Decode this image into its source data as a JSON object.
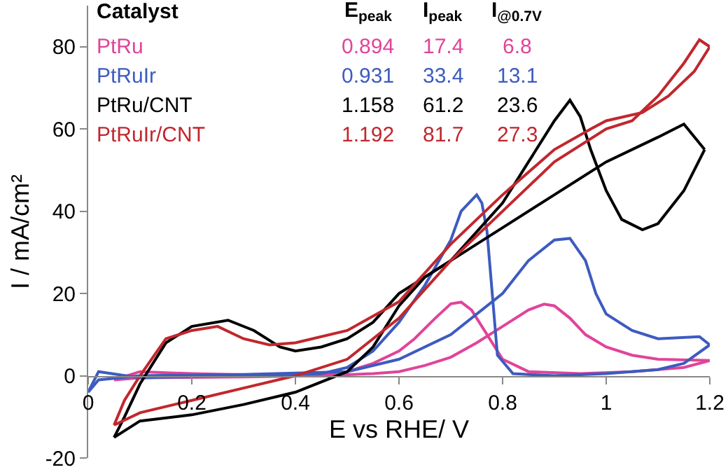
{
  "chart_data": {
    "type": "line",
    "xlabel": "E vs RHE/ V",
    "ylabel": "I / mA/cm²",
    "xlim": [
      0,
      1.2
    ],
    "xticks": [
      0,
      0.2,
      0.4,
      0.6,
      0.8,
      1,
      1.2
    ],
    "ylim": [
      -20,
      90
    ],
    "yticks": [
      -20,
      0,
      20,
      40,
      60,
      80
    ],
    "grid": false,
    "annotations": [
      "Catalyst",
      "E$_{peak}$",
      "I$_{peak}$",
      "I$_{@0.7V}$",
      "0.894",
      "17.4",
      "6.8",
      "0.931",
      "33.4",
      "13.1",
      "1.158",
      "61.2",
      "23.6",
      "1.192",
      "81.7",
      "27.3"
    ],
    "series": [
      {
        "name": "PtRu",
        "color": "#e0449a",
        "x": [
          0.05,
          0.1,
          0.3,
          0.45,
          0.55,
          0.6,
          0.65,
          0.7,
          0.75,
          0.8,
          0.85,
          0.88,
          0.9,
          0.93,
          0.96,
          1.0,
          1.05,
          1.1,
          1.2
        ],
        "values": [
          -1,
          -0.5,
          -0.3,
          0,
          0.5,
          1,
          2.5,
          4.5,
          8,
          12,
          16,
          17.4,
          17,
          14,
          10,
          7,
          5,
          4,
          3.7
        ]
      },
      {
        "color": "#e0449a",
        "x": [
          1.2,
          1.15,
          1.05,
          0.95,
          0.85,
          0.8,
          0.76,
          0.74,
          0.72,
          0.7,
          0.67,
          0.63,
          0.6,
          0.55,
          0.5,
          0.4,
          0.2,
          0.1,
          0.05
        ],
        "values": [
          3.7,
          2,
          1,
          0.5,
          1,
          4,
          12,
          16,
          17.9,
          17.5,
          14,
          9,
          6,
          3,
          1,
          0,
          0.5,
          1,
          -1
        ]
      },
      {
        "name": "PtRuIr",
        "color": "#3d5bbf",
        "x": [
          0.0,
          0.02,
          0.1,
          0.3,
          0.5,
          0.6,
          0.7,
          0.8,
          0.85,
          0.9,
          0.93,
          0.96,
          0.98,
          1.0,
          1.05,
          1.1,
          1.18,
          1.2
        ],
        "values": [
          -4,
          -1,
          0,
          0.3,
          1,
          4,
          10,
          20,
          28,
          33,
          33.4,
          28,
          20,
          15,
          11,
          9,
          9.5,
          7.5
        ]
      },
      {
        "color": "#3d5bbf",
        "x": [
          1.2,
          1.15,
          1.1,
          1.0,
          0.9,
          0.82,
          0.79,
          0.78,
          0.77,
          0.76,
          0.75,
          0.72,
          0.7,
          0.65,
          0.6,
          0.55,
          0.5,
          0.45,
          0.3,
          0.1,
          0.02,
          0.0
        ],
        "values": [
          7.5,
          3,
          1.5,
          0.5,
          0,
          0.5,
          5,
          20,
          35,
          42,
          44,
          40,
          33,
          22,
          13,
          6,
          2,
          0.5,
          0,
          -0.5,
          1,
          -4
        ]
      },
      {
        "name": "PtRu/CNT",
        "color": "#000000",
        "x": [
          0.05,
          0.1,
          0.2,
          0.3,
          0.4,
          0.5,
          0.55,
          0.6,
          0.65,
          0.7,
          0.8,
          0.9,
          1.0,
          1.1,
          1.15,
          1.19
        ],
        "values": [
          -15,
          -11,
          -9.5,
          -7,
          -4,
          1,
          7,
          17,
          24,
          28,
          36,
          44,
          52,
          58,
          61.2,
          55
        ]
      },
      {
        "color": "#000000",
        "x": [
          1.19,
          1.15,
          1.1,
          1.07,
          1.03,
          1.0,
          0.97,
          0.95,
          0.93,
          0.9,
          0.85,
          0.8,
          0.7,
          0.65,
          0.6,
          0.55,
          0.5,
          0.45,
          0.4,
          0.37,
          0.32,
          0.27,
          0.2,
          0.15,
          0.1,
          0.07,
          0.05
        ],
        "values": [
          55,
          45,
          37,
          35.5,
          38,
          45,
          55,
          63,
          67,
          62,
          52,
          42,
          28,
          24,
          20,
          13,
          9,
          7,
          6,
          7,
          11,
          13.5,
          12,
          8,
          -2,
          -10,
          -15
        ]
      },
      {
        "name": "PtRuIr/CNT",
        "color": "#c1272d",
        "x": [
          0.05,
          0.1,
          0.2,
          0.3,
          0.4,
          0.5,
          0.6,
          0.7,
          0.8,
          0.9,
          1.0,
          1.05,
          1.1,
          1.15,
          1.18,
          1.2
        ],
        "values": [
          -12,
          -9,
          -6,
          -3,
          0,
          4,
          14,
          28,
          40,
          52,
          60,
          62,
          68,
          76,
          81.7,
          80
        ]
      },
      {
        "color": "#c1272d",
        "x": [
          1.2,
          1.17,
          1.12,
          1.07,
          1.0,
          0.97,
          0.9,
          0.8,
          0.7,
          0.6,
          0.5,
          0.4,
          0.35,
          0.3,
          0.25,
          0.2,
          0.15,
          0.1,
          0.07,
          0.05
        ],
        "values": [
          80,
          74,
          68,
          64,
          62,
          60,
          55,
          44,
          32,
          18,
          11,
          8,
          7.5,
          9,
          12,
          11,
          9,
          0,
          -6,
          -12
        ]
      }
    ]
  }
}
